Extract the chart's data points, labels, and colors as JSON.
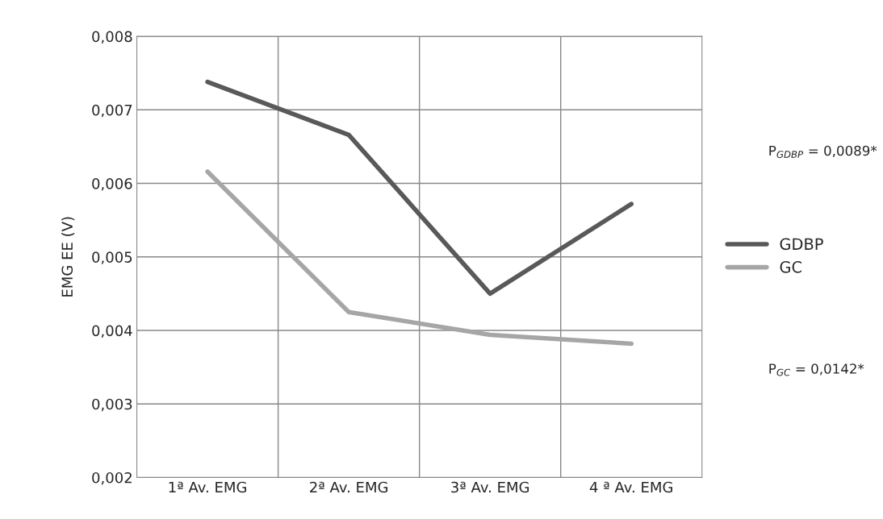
{
  "chart_data": {
    "type": "line",
    "ylabel": "EMG EE (V)",
    "categories": [
      "1ª Av. EMG",
      "2ª Av. EMG",
      "3ª Av. EMG",
      "4 ª Av. EMG"
    ],
    "series": [
      {
        "name": "GDBP",
        "color": "#595959",
        "values": [
          0.00738,
          0.00666,
          0.0045,
          0.00572
        ]
      },
      {
        "name": "GC",
        "color": "#a6a6a6",
        "values": [
          0.00616,
          0.00425,
          0.00394,
          0.00382
        ]
      }
    ],
    "ylim": [
      0.002,
      0.008
    ],
    "yticks": [
      {
        "value": 0.002,
        "label": "0,002"
      },
      {
        "value": 0.003,
        "label": "0,003"
      },
      {
        "value": 0.004,
        "label": "0,004"
      },
      {
        "value": 0.005,
        "label": "0,005"
      },
      {
        "value": 0.006,
        "label": "0,006"
      },
      {
        "value": 0.007,
        "label": "0,007"
      },
      {
        "value": 0.008,
        "label": "0,008"
      }
    ],
    "grid": true,
    "legend": "right",
    "marker": "none",
    "line_style": "solid",
    "annotations": [
      "P$_{GDBP}$ = 0,0089*",
      "P$_{GC}$ = 0,0142*"
    ]
  }
}
